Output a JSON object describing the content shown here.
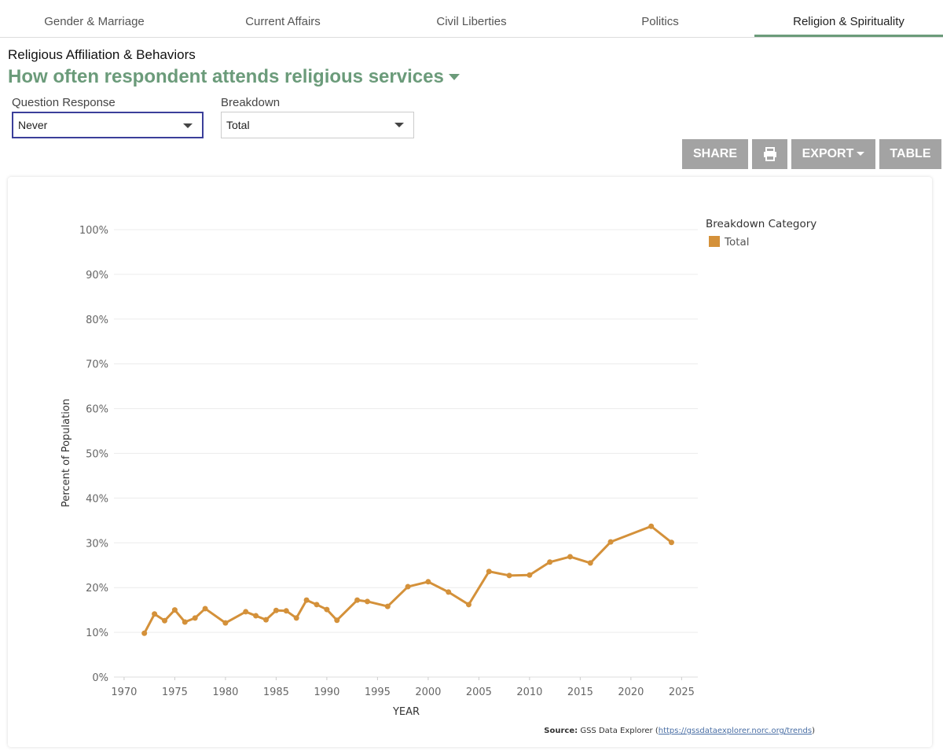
{
  "tabs": [
    "Gender & Marriage",
    "Current Affairs",
    "Civil Liberties",
    "Politics",
    "Religion & Spirituality"
  ],
  "active_tab": 4,
  "header": {
    "category": "Religious Affiliation & Behaviors",
    "title": "How often respondent attends religious services"
  },
  "controls": {
    "question_label": "Question Response",
    "question_value": "Never",
    "breakdown_label": "Breakdown",
    "breakdown_value": "Total"
  },
  "buttons": {
    "share": "SHARE",
    "export": "EXPORT",
    "table": "TABLE"
  },
  "source": {
    "label": "Source:",
    "prefix": "GSS Data Explorer (",
    "url": "https://gssdataexplorer.norc.org/trends",
    "suffix": ")"
  },
  "chart_data": {
    "type": "line",
    "xlabel": "YEAR",
    "ylabel": "Percent of Population",
    "legend_title": "Breakdown Category",
    "legend": "top-right",
    "grid": true,
    "x": [
      1972,
      1973,
      1974,
      1975,
      1976,
      1977,
      1978,
      1980,
      1982,
      1983,
      1984,
      1985,
      1986,
      1987,
      1988,
      1989,
      1990,
      1991,
      1993,
      1994,
      1996,
      1998,
      2000,
      2002,
      2004,
      2006,
      2008,
      2010,
      2012,
      2014,
      2016,
      2018,
      2022,
      2024
    ],
    "series": [
      {
        "name": "Total",
        "color": "#d4913a",
        "values": [
          9.8,
          14.1,
          12.6,
          15.0,
          12.3,
          13.2,
          15.3,
          12.1,
          14.6,
          13.7,
          12.8,
          14.9,
          14.8,
          13.2,
          17.2,
          16.2,
          15.1,
          12.7,
          17.2,
          16.9,
          15.8,
          20.2,
          21.3,
          19.0,
          16.2,
          23.6,
          22.7,
          22.8,
          25.7,
          26.9,
          25.5,
          30.2,
          33.7,
          30.1
        ]
      }
    ],
    "xlim": [
      1969,
      2026.6
    ],
    "xticks": [
      1970,
      1975,
      1980,
      1985,
      1990,
      1995,
      2000,
      2005,
      2010,
      2015,
      2020,
      2025
    ],
    "ylim": [
      0,
      100
    ],
    "yticks": [
      {
        "value": 0,
        "label": "0%"
      },
      {
        "value": 10,
        "label": "10%"
      },
      {
        "value": 20,
        "label": "20%"
      },
      {
        "value": 30,
        "label": "30%"
      },
      {
        "value": 40,
        "label": "40%"
      },
      {
        "value": 50,
        "label": "50%"
      },
      {
        "value": 60,
        "label": "60%"
      },
      {
        "value": 70,
        "label": "70%"
      },
      {
        "value": 80,
        "label": "80%"
      },
      {
        "value": 90,
        "label": "90%"
      },
      {
        "value": 100,
        "label": "100%"
      }
    ]
  }
}
